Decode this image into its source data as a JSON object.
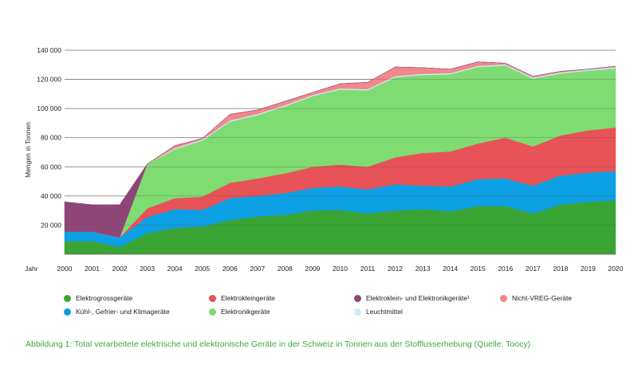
{
  "caption": "Abbildung 1: Total verarbeitete elektrische und elektronische Geräte in der Schweiz in Tonnen aus der Stofflusserhebung (Quelle: Toocy)",
  "chart_data": {
    "type": "area",
    "stacked": true,
    "title": "",
    "xlabel": "Jahr",
    "ylabel": "Mengen in Tonnen",
    "ylim": [
      0,
      140000
    ],
    "yticks": [
      20000,
      40000,
      60000,
      80000,
      100000,
      120000,
      140000
    ],
    "ytick_labels": [
      "20 000",
      "40 000",
      "60 000",
      "80 000",
      "100 000",
      "120 000",
      "140 000"
    ],
    "grid": true,
    "legend_position": "bottom",
    "x": [
      "2000",
      "2001",
      "2002",
      "2003",
      "2004",
      "2005",
      "2006",
      "2007",
      "2008",
      "2009",
      "2010",
      "2011",
      "2012",
      "2013",
      "2014",
      "2015",
      "2016",
      "2017",
      "2018",
      "2019",
      "2020"
    ],
    "series": [
      {
        "name": "Elektrogrossgeräte",
        "color": "#3aa535",
        "values": [
          9000,
          9000,
          5000,
          14500,
          18000,
          19000,
          23500,
          26000,
          27000,
          30000,
          30500,
          28000,
          30000,
          31000,
          29500,
          33000,
          33000,
          28000,
          34000,
          36000,
          37000
        ]
      },
      {
        "name": "Kühl-, Gefrier- und Klimageräte",
        "color": "#0ea0e4",
        "values": [
          6500,
          6500,
          6500,
          11000,
          13000,
          11500,
          15000,
          14000,
          15000,
          15500,
          16000,
          16500,
          18000,
          16000,
          17000,
          18500,
          19000,
          19000,
          20000,
          20000,
          20000
        ]
      },
      {
        "name": "Elektrokleingeräte",
        "color": "#e85358",
        "values": [
          0,
          0,
          0,
          6000,
          7500,
          9000,
          10500,
          12000,
          13500,
          14500,
          15000,
          15500,
          18500,
          22500,
          24000,
          24500,
          28000,
          27000,
          27500,
          29000,
          30000
        ]
      },
      {
        "name": "Elektronikgeräte",
        "color": "#7edc72",
        "values": [
          0,
          0,
          0,
          30500,
          33500,
          38500,
          42000,
          43500,
          46000,
          48500,
          51500,
          52500,
          55000,
          53500,
          53000,
          52500,
          49500,
          46500,
          42500,
          41000,
          40500
        ]
      },
      {
        "name": "Leuchtmittel",
        "color": "#cde9fa",
        "values": [
          0,
          0,
          0,
          0,
          800,
          800,
          800,
          800,
          800,
          800,
          800,
          800,
          800,
          800,
          800,
          800,
          800,
          800,
          800,
          800,
          800
        ]
      },
      {
        "name": "Nicht-VREG-Geräte",
        "color": "#f2888a",
        "values": [
          0,
          0,
          0,
          0,
          1700,
          700,
          4200,
          2700,
          2700,
          1700,
          3200,
          4700,
          6200,
          4200,
          2700,
          2700,
          800,
          800,
          700,
          200,
          700
        ]
      },
      {
        "name": "Elektroklein- und Elektronikgeräte¹",
        "color": "#8e4677",
        "values": [
          20500,
          18500,
          22500,
          0,
          0,
          0,
          0,
          0,
          0,
          0,
          0,
          0,
          0,
          0,
          0,
          0,
          0,
          0,
          0,
          0,
          0
        ]
      }
    ]
  },
  "legend_items": [
    {
      "label": "Elektrogrossgeräte",
      "color": "#3aa535"
    },
    {
      "label": "Elektrokleingeräte",
      "color": "#e85358"
    },
    {
      "label": "Elektroklein- und Elektronikgeräte¹",
      "color": "#8e4677"
    },
    {
      "label": "Nicht-VREG-Geräte",
      "color": "#f2888a"
    },
    {
      "label": "Kühl-, Gefrier- und Klimageräte",
      "color": "#0ea0e4"
    },
    {
      "label": "Elektronikgeräte",
      "color": "#7edc72"
    },
    {
      "label": "Leuchtmittel",
      "color": "#cde9fa"
    }
  ]
}
